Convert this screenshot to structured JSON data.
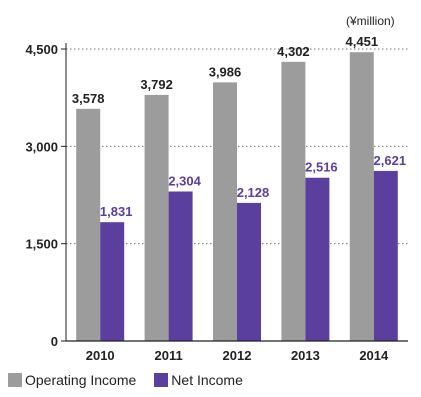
{
  "unit_label": "(¥million)",
  "colors": {
    "operating": "#9c9c9c",
    "net": "#5b3f9e",
    "axis": "#222222",
    "grid": "#777777"
  },
  "chart_data": {
    "type": "bar",
    "title": "",
    "xlabel": "",
    "ylabel": "",
    "categories": [
      "2010",
      "2011",
      "2012",
      "2013",
      "2014"
    ],
    "series": [
      {
        "name": "Operating Income",
        "values": [
          3578,
          3792,
          3986,
          4302,
          4451
        ]
      },
      {
        "name": "Net Income",
        "values": [
          1831,
          2304,
          2128,
          2516,
          2621
        ]
      }
    ],
    "ylim": [
      0,
      4500
    ],
    "yticks": [
      "0",
      "1,500",
      "3,000",
      "4,500"
    ],
    "ytick_values": [
      0,
      1500,
      3000,
      4500
    ],
    "data_labels": {
      "Operating Income": [
        "3,578",
        "3,792",
        "3,986",
        "4,302",
        "4,451"
      ],
      "Net Income": [
        "1,831",
        "2,304",
        "2,128",
        "2,516",
        "2,621"
      ]
    },
    "grid": true,
    "legend": "bottom-left"
  }
}
